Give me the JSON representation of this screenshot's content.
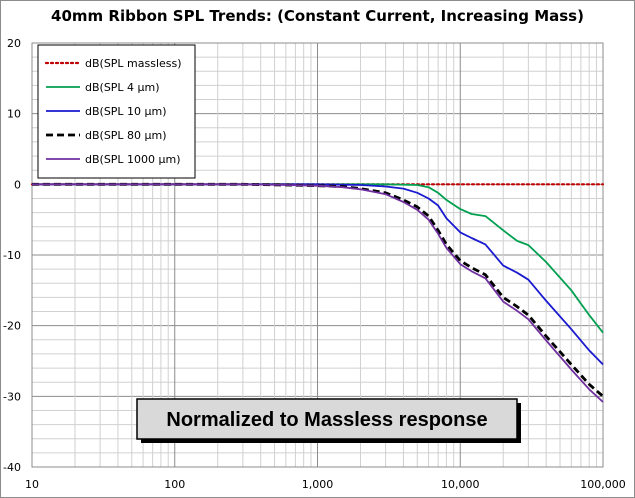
{
  "chart_data": {
    "type": "line",
    "title": "40mm Ribbon SPL Trends: (Constant Current, Increasing Mass)",
    "annotation": "Normalized to Massless response",
    "xscale": "log",
    "xlim": [
      10,
      100000
    ],
    "ylim": [
      -40,
      20
    ],
    "x_ticks": [
      "10",
      "100",
      "1,000",
      "10,000",
      "100,000"
    ],
    "y_ticks": [
      "20",
      "10",
      "0",
      "-10",
      "-20",
      "-30",
      "-40"
    ],
    "grid": true,
    "legend_position": "top-left",
    "series": [
      {
        "name": "dB(SPL massless)",
        "color": "#c00000",
        "style": "dotted",
        "points": [
          [
            10,
            0
          ],
          [
            100000,
            0
          ]
        ]
      },
      {
        "name": "dB(SPL 4 µm)",
        "color": "#00a050",
        "style": "solid",
        "points": [
          [
            10,
            0
          ],
          [
            1000,
            0
          ],
          [
            3000,
            0
          ],
          [
            5000,
            -0.1
          ],
          [
            6000,
            -0.4
          ],
          [
            7000,
            -1.2
          ],
          [
            8000,
            -2.2
          ],
          [
            10000,
            -3.5
          ],
          [
            12000,
            -4.2
          ],
          [
            15000,
            -4.5
          ],
          [
            20000,
            -6.5
          ],
          [
            25000,
            -8.0
          ],
          [
            30000,
            -8.6
          ],
          [
            40000,
            -11.0
          ],
          [
            60000,
            -15.0
          ],
          [
            80000,
            -18.5
          ],
          [
            100000,
            -21.0
          ]
        ]
      },
      {
        "name": "dB(SPL 10 µm)",
        "color": "#1a1ad0",
        "style": "solid",
        "points": [
          [
            10,
            0
          ],
          [
            500,
            0
          ],
          [
            1000,
            0
          ],
          [
            2000,
            -0.1
          ],
          [
            3000,
            -0.3
          ],
          [
            4000,
            -0.6
          ],
          [
            5000,
            -1.2
          ],
          [
            6000,
            -2.0
          ],
          [
            7000,
            -3.0
          ],
          [
            8000,
            -4.8
          ],
          [
            10000,
            -6.8
          ],
          [
            12000,
            -7.6
          ],
          [
            15000,
            -8.5
          ],
          [
            20000,
            -11.5
          ],
          [
            25000,
            -12.5
          ],
          [
            30000,
            -13.5
          ],
          [
            40000,
            -16.5
          ],
          [
            60000,
            -20.5
          ],
          [
            80000,
            -23.5
          ],
          [
            100000,
            -25.5
          ]
        ]
      },
      {
        "name": "dB(SPL 80 µm)",
        "color": "#000000",
        "style": "dashed",
        "points": [
          [
            10,
            0
          ],
          [
            300,
            0
          ],
          [
            600,
            -0.1
          ],
          [
            1000,
            -0.2
          ],
          [
            1500,
            -0.3
          ],
          [
            2000,
            -0.6
          ],
          [
            3000,
            -1.2
          ],
          [
            4000,
            -2.2
          ],
          [
            5000,
            -3.2
          ],
          [
            6000,
            -4.5
          ],
          [
            7000,
            -6.5
          ],
          [
            8000,
            -8.5
          ],
          [
            10000,
            -10.8
          ],
          [
            12000,
            -11.8
          ],
          [
            15000,
            -12.8
          ],
          [
            20000,
            -16.0
          ],
          [
            25000,
            -17.3
          ],
          [
            30000,
            -18.5
          ],
          [
            40000,
            -21.5
          ],
          [
            60000,
            -25.5
          ],
          [
            80000,
            -28.3
          ],
          [
            100000,
            -30.0
          ]
        ]
      },
      {
        "name": "dB(SPL 1000 µm)",
        "color": "#7030a0",
        "style": "solid",
        "points": [
          [
            10,
            0
          ],
          [
            300,
            0
          ],
          [
            600,
            -0.1
          ],
          [
            1000,
            -0.2
          ],
          [
            1500,
            -0.4
          ],
          [
            2000,
            -0.7
          ],
          [
            3000,
            -1.4
          ],
          [
            4000,
            -2.5
          ],
          [
            5000,
            -3.6
          ],
          [
            6000,
            -5.0
          ],
          [
            7000,
            -7.0
          ],
          [
            8000,
            -9.0
          ],
          [
            10000,
            -11.3
          ],
          [
            12000,
            -12.3
          ],
          [
            15000,
            -13.3
          ],
          [
            20000,
            -16.6
          ],
          [
            25000,
            -17.9
          ],
          [
            30000,
            -19.1
          ],
          [
            40000,
            -22.1
          ],
          [
            60000,
            -26.2
          ],
          [
            80000,
            -29.0
          ],
          [
            100000,
            -30.8
          ]
        ]
      }
    ]
  }
}
